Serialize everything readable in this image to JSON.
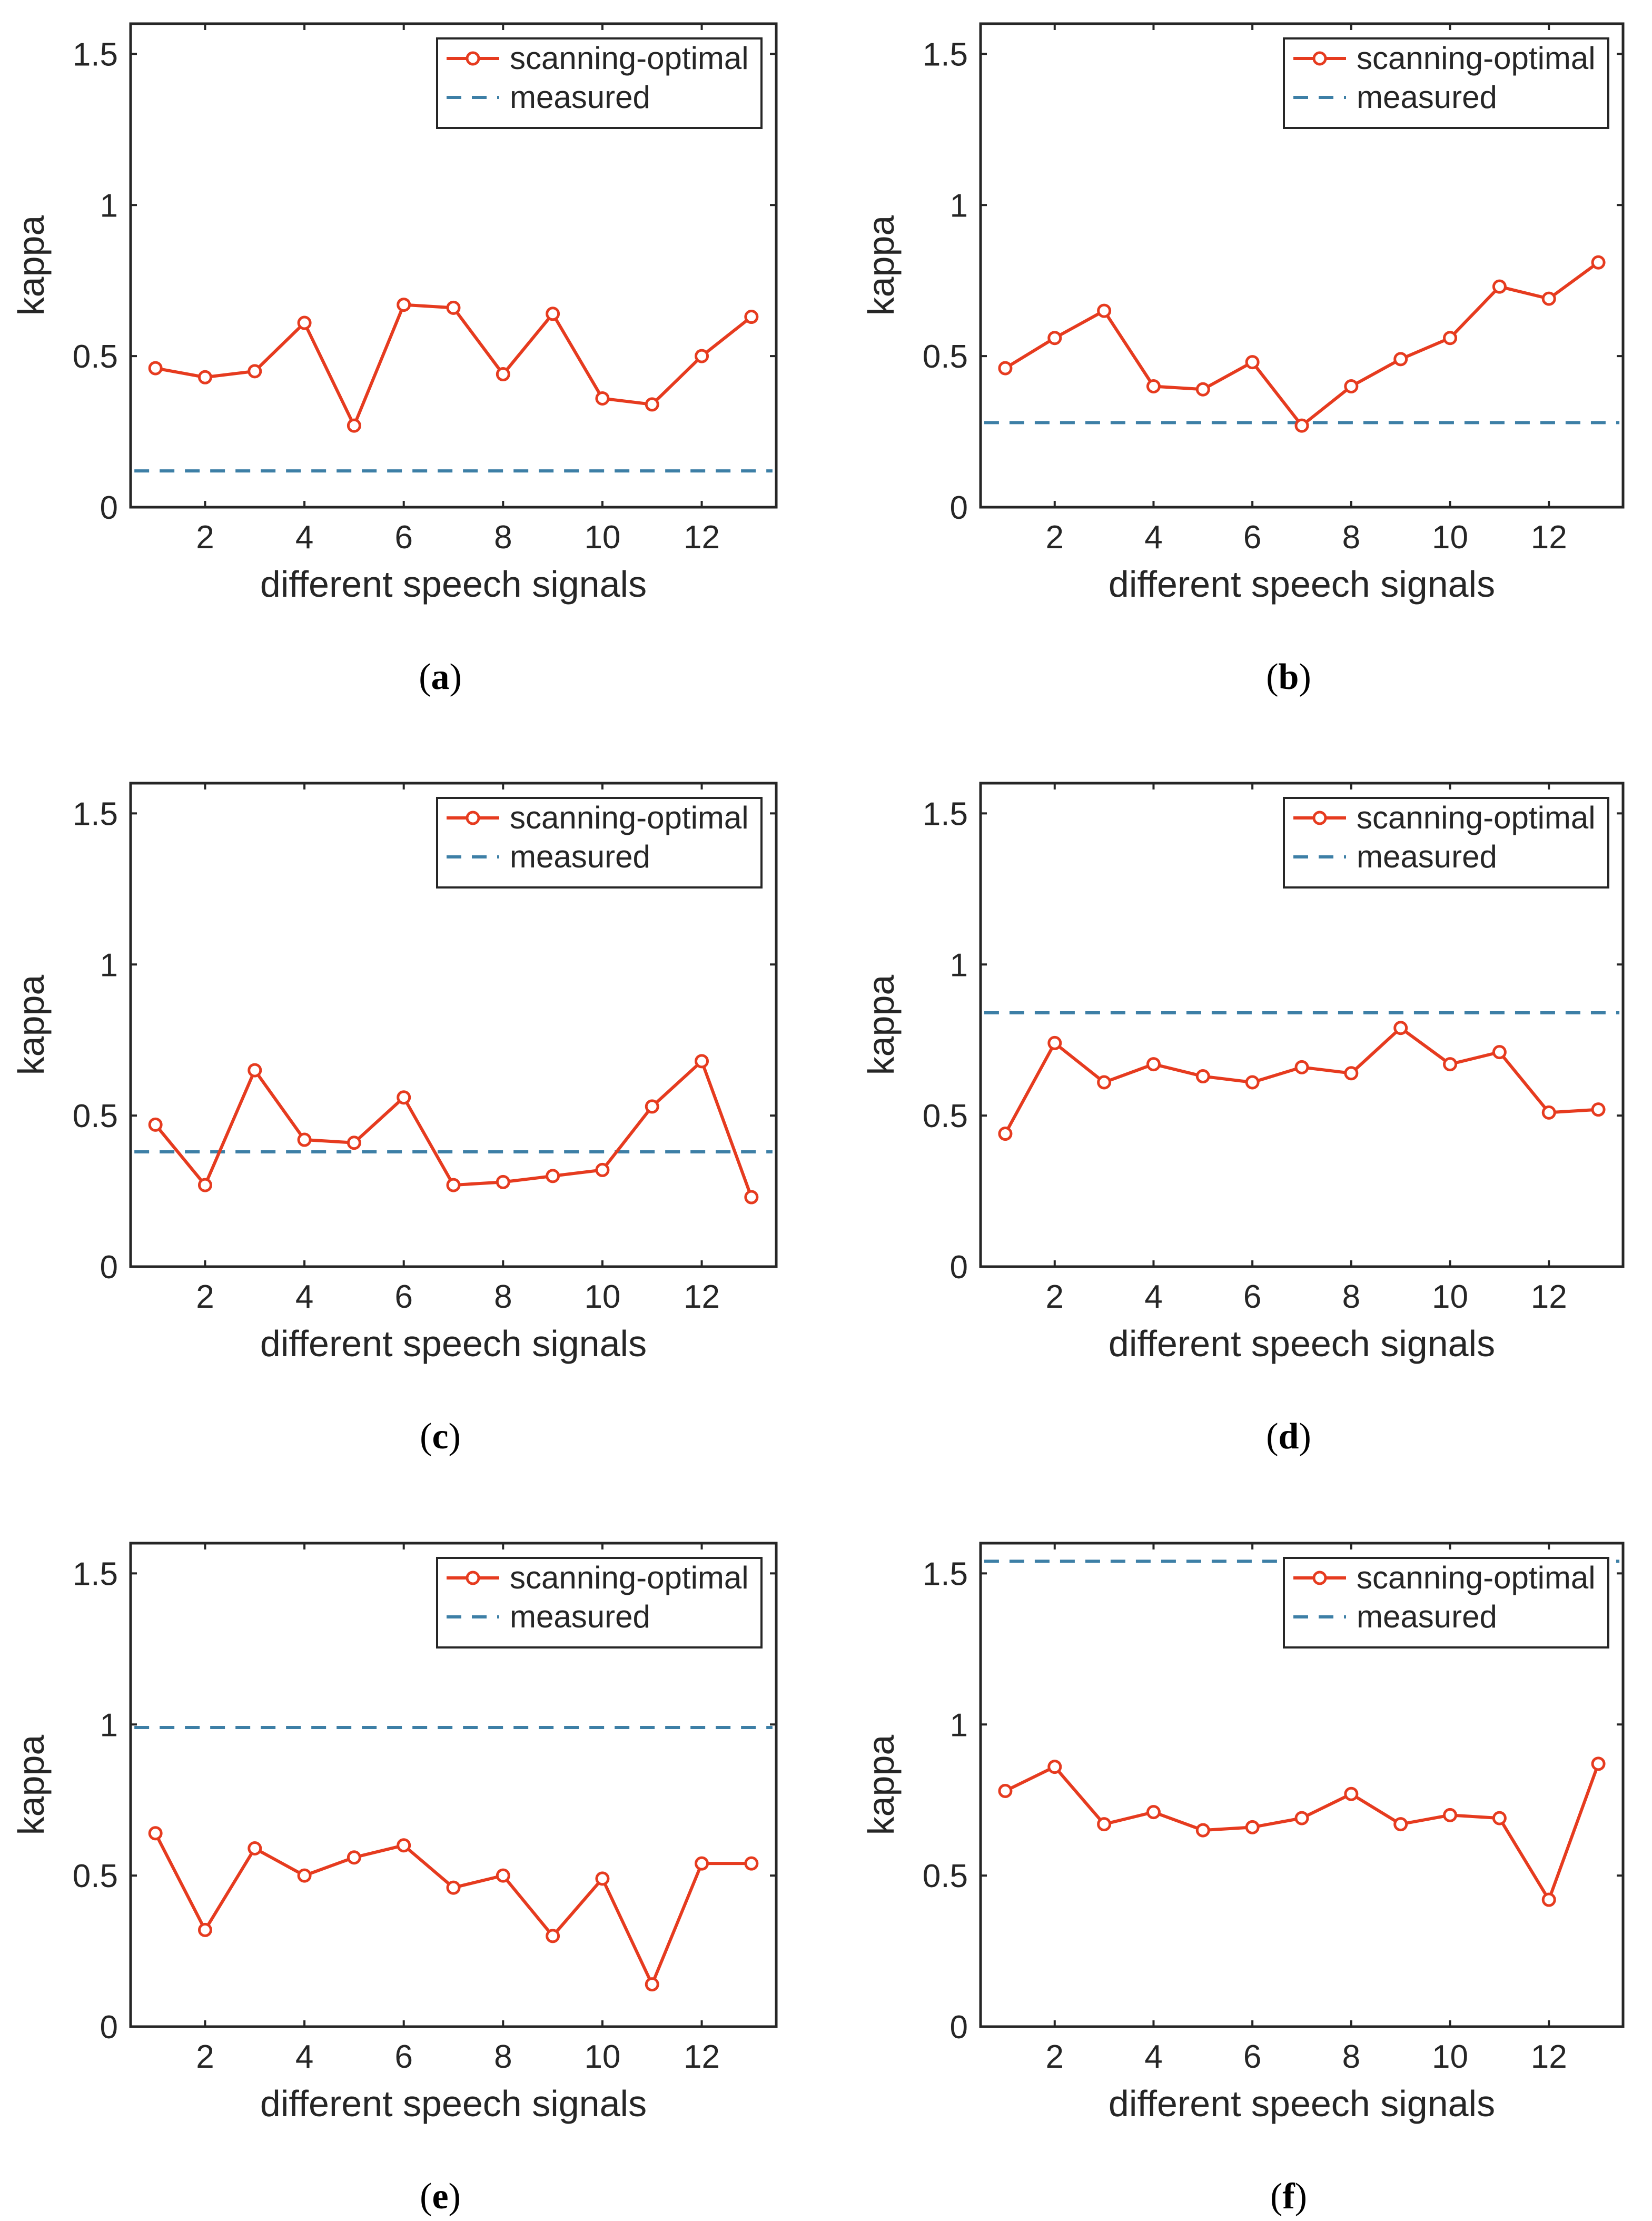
{
  "colors": {
    "optimal": "#e63b1f",
    "measured": "#3d7fa6",
    "axis": "#262626",
    "background": "#ffffff"
  },
  "chart_data": [
    {
      "type": "line",
      "panel": "a",
      "caption": {
        "open": "(",
        "letter": "a",
        "close": ")"
      },
      "xlabel": "different speech signals",
      "ylabel": "kappa",
      "xlim": [
        0.5,
        13.5
      ],
      "ylim": [
        0,
        1.6
      ],
      "x_ticks": [
        2,
        4,
        6,
        8,
        10,
        12
      ],
      "x_tick_labels": [
        "2",
        "4",
        "6",
        "8",
        "10",
        "12"
      ],
      "y_ticks": [
        0,
        0.5,
        1,
        1.5
      ],
      "y_tick_labels": [
        "0",
        "0.5",
        "1",
        "1.5"
      ],
      "legend_position": "top-right",
      "x": [
        1,
        2,
        3,
        4,
        5,
        6,
        7,
        8,
        9,
        10,
        11,
        12,
        13
      ],
      "series": [
        {
          "name": "scanning-optimal",
          "style": "solid-circles",
          "values": [
            0.46,
            0.43,
            0.45,
            0.61,
            0.27,
            0.67,
            0.66,
            0.44,
            0.64,
            0.36,
            0.34,
            0.5,
            0.63
          ]
        },
        {
          "name": "measured",
          "style": "dashed",
          "value": 0.12
        }
      ]
    },
    {
      "type": "line",
      "panel": "b",
      "caption": {
        "open": "(",
        "letter": "b",
        "close": ")"
      },
      "xlabel": "different speech signals",
      "ylabel": "kappa",
      "xlim": [
        0.5,
        13.5
      ],
      "ylim": [
        0,
        1.6
      ],
      "x_ticks": [
        2,
        4,
        6,
        8,
        10,
        12
      ],
      "x_tick_labels": [
        "2",
        "4",
        "6",
        "8",
        "10",
        "12"
      ],
      "y_ticks": [
        0,
        0.5,
        1,
        1.5
      ],
      "y_tick_labels": [
        "0",
        "0.5",
        "1",
        "1.5"
      ],
      "legend_position": "top-right",
      "x": [
        1,
        2,
        3,
        4,
        5,
        6,
        7,
        8,
        9,
        10,
        11,
        12,
        13
      ],
      "series": [
        {
          "name": "scanning-optimal",
          "style": "solid-circles",
          "values": [
            0.46,
            0.56,
            0.65,
            0.4,
            0.39,
            0.48,
            0.27,
            0.4,
            0.49,
            0.56,
            0.73,
            0.69,
            0.81
          ]
        },
        {
          "name": "measured",
          "style": "dashed",
          "value": 0.28
        }
      ]
    },
    {
      "type": "line",
      "panel": "c",
      "caption": {
        "open": "(",
        "letter": "c",
        "close": ")"
      },
      "xlabel": "different speech signals",
      "ylabel": "kappa",
      "xlim": [
        0.5,
        13.5
      ],
      "ylim": [
        0,
        1.6
      ],
      "x_ticks": [
        2,
        4,
        6,
        8,
        10,
        12
      ],
      "x_tick_labels": [
        "2",
        "4",
        "6",
        "8",
        "10",
        "12"
      ],
      "y_ticks": [
        0,
        0.5,
        1,
        1.5
      ],
      "y_tick_labels": [
        "0",
        "0.5",
        "1",
        "1.5"
      ],
      "legend_position": "top-right",
      "x": [
        1,
        2,
        3,
        4,
        5,
        6,
        7,
        8,
        9,
        10,
        11,
        12,
        13
      ],
      "series": [
        {
          "name": "scanning-optimal",
          "style": "solid-circles",
          "values": [
            0.47,
            0.27,
            0.65,
            0.42,
            0.41,
            0.56,
            0.27,
            0.28,
            0.3,
            0.32,
            0.53,
            0.68,
            0.23
          ]
        },
        {
          "name": "measured",
          "style": "dashed",
          "value": 0.38
        }
      ]
    },
    {
      "type": "line",
      "panel": "d",
      "caption": {
        "open": "(",
        "letter": "d",
        "close": ")"
      },
      "xlabel": "different speech signals",
      "ylabel": "kappa",
      "xlim": [
        0.5,
        13.5
      ],
      "ylim": [
        0,
        1.6
      ],
      "x_ticks": [
        2,
        4,
        6,
        8,
        10,
        12
      ],
      "x_tick_labels": [
        "2",
        "4",
        "6",
        "8",
        "10",
        "12"
      ],
      "y_ticks": [
        0,
        0.5,
        1,
        1.5
      ],
      "y_tick_labels": [
        "0",
        "0.5",
        "1",
        "1.5"
      ],
      "legend_position": "top-right",
      "x": [
        1,
        2,
        3,
        4,
        5,
        6,
        7,
        8,
        9,
        10,
        11,
        12,
        13
      ],
      "series": [
        {
          "name": "scanning-optimal",
          "style": "solid-circles",
          "values": [
            0.44,
            0.74,
            0.61,
            0.67,
            0.63,
            0.61,
            0.66,
            0.64,
            0.79,
            0.67,
            0.71,
            0.51,
            0.52
          ]
        },
        {
          "name": "measured",
          "style": "dashed",
          "value": 0.84
        }
      ]
    },
    {
      "type": "line",
      "panel": "e",
      "caption": {
        "open": "(",
        "letter": "e",
        "close": ")"
      },
      "xlabel": "different speech signals",
      "ylabel": "kappa",
      "xlim": [
        0.5,
        13.5
      ],
      "ylim": [
        0,
        1.6
      ],
      "x_ticks": [
        2,
        4,
        6,
        8,
        10,
        12
      ],
      "x_tick_labels": [
        "2",
        "4",
        "6",
        "8",
        "10",
        "12"
      ],
      "y_ticks": [
        0,
        0.5,
        1,
        1.5
      ],
      "y_tick_labels": [
        "0",
        "0.5",
        "1",
        "1.5"
      ],
      "legend_position": "top-right",
      "x": [
        1,
        2,
        3,
        4,
        5,
        6,
        7,
        8,
        9,
        10,
        11,
        12,
        13
      ],
      "series": [
        {
          "name": "scanning-optimal",
          "style": "solid-circles",
          "values": [
            0.64,
            0.32,
            0.59,
            0.5,
            0.56,
            0.6,
            0.46,
            0.5,
            0.3,
            0.49,
            0.14,
            0.54,
            0.54
          ]
        },
        {
          "name": "measured",
          "style": "dashed",
          "value": 0.99
        }
      ]
    },
    {
      "type": "line",
      "panel": "f",
      "caption": {
        "open": "(",
        "letter": "f",
        "close": ")"
      },
      "xlabel": "different speech signals",
      "ylabel": "kappa",
      "xlim": [
        0.5,
        13.5
      ],
      "ylim": [
        0,
        1.6
      ],
      "x_ticks": [
        2,
        4,
        6,
        8,
        10,
        12
      ],
      "x_tick_labels": [
        "2",
        "4",
        "6",
        "8",
        "10",
        "12"
      ],
      "y_ticks": [
        0,
        0.5,
        1,
        1.5
      ],
      "y_tick_labels": [
        "0",
        "0.5",
        "1",
        "1.5"
      ],
      "legend_position": "top-right",
      "x": [
        1,
        2,
        3,
        4,
        5,
        6,
        7,
        8,
        9,
        10,
        11,
        12,
        13
      ],
      "series": [
        {
          "name": "scanning-optimal",
          "style": "solid-circles",
          "values": [
            0.78,
            0.86,
            0.67,
            0.71,
            0.65,
            0.66,
            0.69,
            0.77,
            0.67,
            0.7,
            0.69,
            0.42,
            0.87
          ]
        },
        {
          "name": "measured",
          "style": "dashed",
          "value": 1.54
        }
      ]
    }
  ]
}
